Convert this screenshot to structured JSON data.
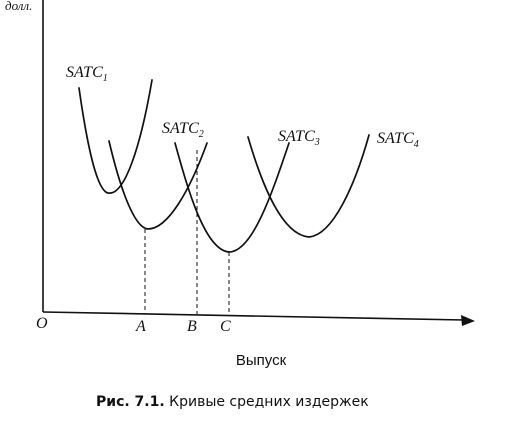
{
  "chart_data": {
    "type": "line",
    "ylabel": "доллары",
    "ylabel_visible": "долл.",
    "xlabel": "Выпуск",
    "origin_label": "O",
    "x_ticks": [
      "A",
      "B",
      "C"
    ],
    "series": [
      {
        "name": "SATC",
        "sub": "1",
        "min_x": 108,
        "min_y": 193
      },
      {
        "name": "SATC",
        "sub": "2",
        "min_x": 148,
        "min_y": 229
      },
      {
        "name": "SATC",
        "sub": "3",
        "min_x": 229,
        "min_y": 252
      },
      {
        "name": "SATC",
        "sub": "4",
        "min_x": 309,
        "min_y": 237
      }
    ]
  },
  "caption": {
    "number": "Рис. 7.1.",
    "text": "Кривые средних издержек"
  }
}
